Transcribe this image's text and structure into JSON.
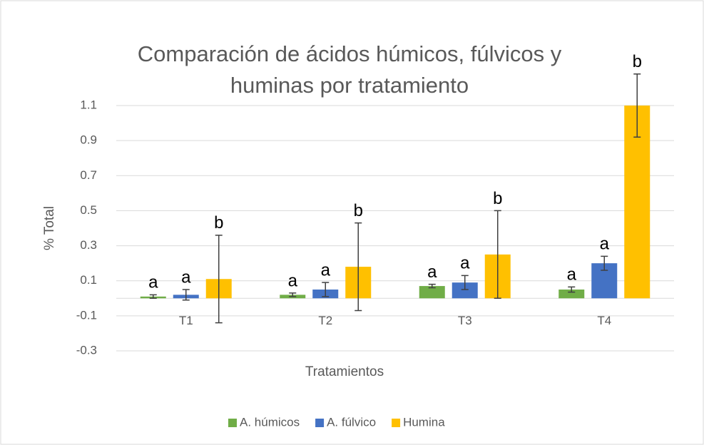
{
  "chart_data": {
    "type": "bar",
    "title": [
      "Comparación de ácidos húmicos, fúlvicos y",
      "huminas por tratamiento"
    ],
    "x_label": "Tratamientos",
    "y_label": "% Total",
    "categories": [
      "T1",
      "T2",
      "T3",
      "T4"
    ],
    "series": [
      {
        "name": "A. húmicos",
        "color": "#70ad47",
        "values": [
          0.01,
          0.02,
          0.07,
          0.05
        ],
        "errors": [
          0.01,
          0.01,
          0.01,
          0.015
        ],
        "letters": [
          "a",
          "a",
          "a",
          "a"
        ]
      },
      {
        "name": "A. fúlvico",
        "color": "#4472c4",
        "values": [
          0.02,
          0.05,
          0.09,
          0.2
        ],
        "errors": [
          0.03,
          0.04,
          0.04,
          0.04
        ],
        "letters": [
          "a",
          "a",
          "a",
          "a"
        ]
      },
      {
        "name": "Humina",
        "color": "#ffc000",
        "values": [
          0.11,
          0.18,
          0.25,
          1.1
        ],
        "errors": [
          0.25,
          0.25,
          0.25,
          0.18
        ],
        "letters": [
          "b",
          "b",
          "b",
          "b"
        ]
      }
    ],
    "ylim": [
      -0.3,
      1.1
    ],
    "yticks": [
      -0.3,
      -0.1,
      0.1,
      0.3,
      0.5,
      0.7,
      0.9,
      1.1
    ],
    "grid": true,
    "legend": "bottom"
  }
}
